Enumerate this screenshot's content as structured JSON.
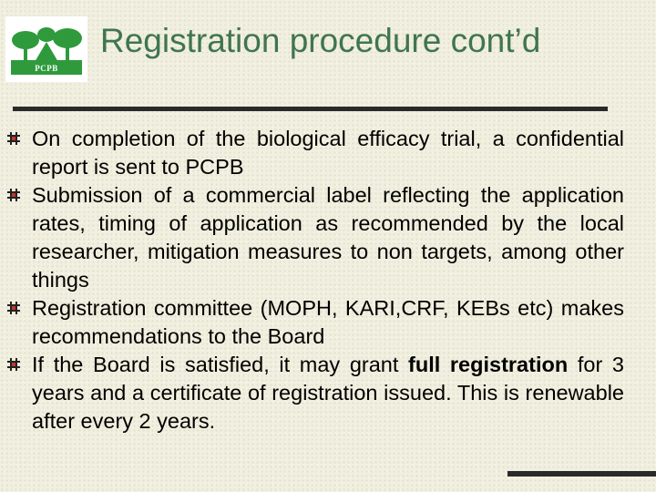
{
  "logo": {
    "text": "PCPB"
  },
  "slide": {
    "title": "Registration procedure cont’d",
    "bullets": [
      {
        "text": "On completion of the biological efficacy trial, a confidential report is sent to PCPB"
      },
      {
        "text": "Submission of a commercial label reflecting the application rates, timing of application as recommended by the local researcher, mitigation measures to non targets, among other things"
      },
      {
        "text": "Registration committee (MOPH, KARI,CRF, KEBs etc) makes recommendations to the Board"
      },
      {
        "text_before": "If the Board is satisfied, it may grant ",
        "text_bold": "full registration",
        "text_after": " for 3 years and a certificate of registration issued. This is renewable after every 2 years."
      }
    ]
  },
  "colors": {
    "title": "#3f7550",
    "logo_green": "#2f9a3c",
    "rule": "#2a2a2a",
    "background": "#f1efdf"
  },
  "icons": {
    "bullet": "hash-bullet-icon"
  }
}
